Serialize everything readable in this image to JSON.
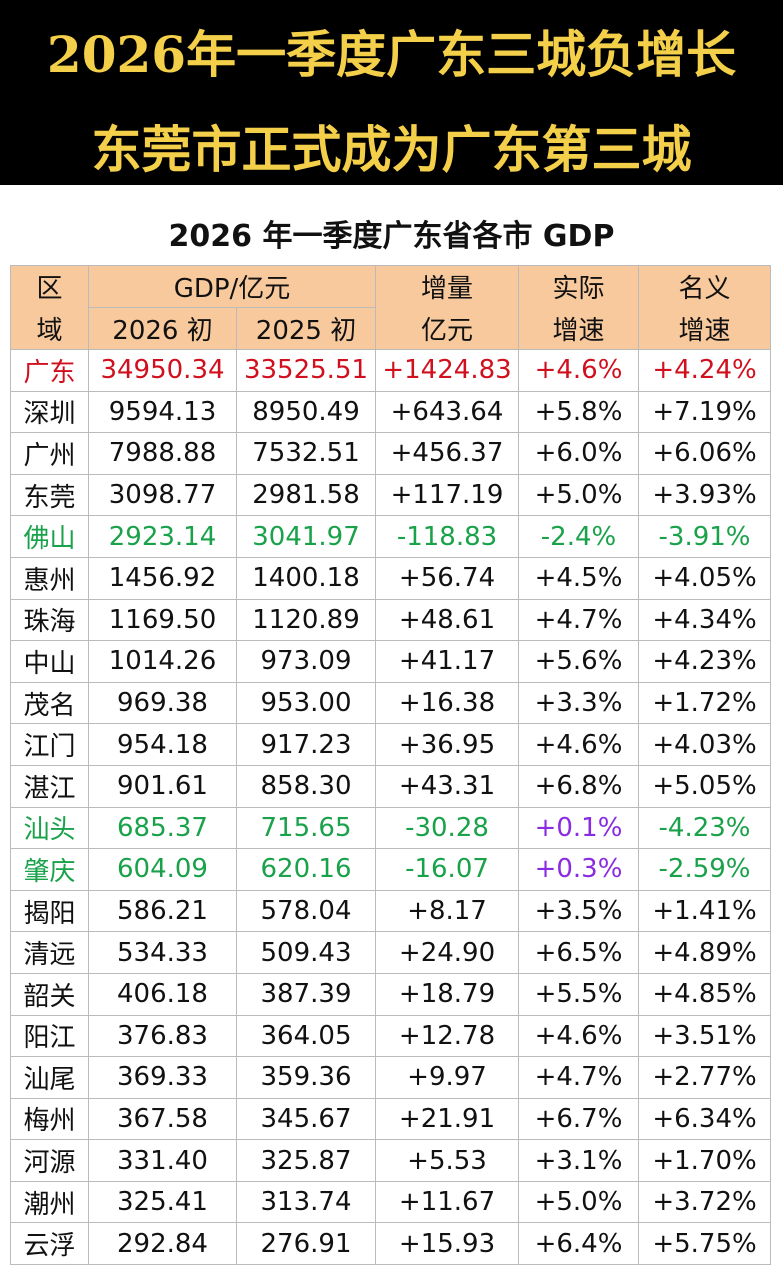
{
  "header": {
    "line1": "2026年一季度广东三城负增长",
    "line2": "东莞市正式成为广东第三城"
  },
  "table": {
    "title": "2026 年一季度广东省各市 GDP",
    "header_row1": [
      "区",
      "GDP/亿元",
      "增量",
      "实际",
      "名义"
    ],
    "header_row2": [
      "域",
      "2026 初",
      "2025 初",
      "亿元",
      "增速",
      "增速"
    ],
    "rows": [
      [
        "广东",
        "34950.34",
        "33525.51",
        "+1424.83",
        "+4.6%",
        "+4.24%"
      ],
      [
        "深圳",
        "9594.13",
        "8950.49",
        "+643.64",
        "+5.8%",
        "+7.19%"
      ],
      [
        "广州",
        "7988.88",
        "7532.51",
        "+456.37",
        "+6.0%",
        "+6.06%"
      ],
      [
        "东莞",
        "3098.77",
        "2981.58",
        "+117.19",
        "+5.0%",
        "+3.93%"
      ],
      [
        "佛山",
        "2923.14",
        "3041.97",
        "-118.83",
        "-2.4%",
        "-3.91%"
      ],
      [
        "惠州",
        "1456.92",
        "1400.18",
        "+56.74",
        "+4.5%",
        "+4.05%"
      ],
      [
        "珠海",
        "1169.50",
        "1120.89",
        "+48.61",
        "+4.7%",
        "+4.34%"
      ],
      [
        "中山",
        "1014.26",
        "973.09",
        "+41.17",
        "+5.6%",
        "+4.23%"
      ],
      [
        "茂名",
        "969.38",
        "953.00",
        "+16.38",
        "+3.3%",
        "+1.72%"
      ],
      [
        "江门",
        "954.18",
        "917.23",
        "+36.95",
        "+4.6%",
        "+4.03%"
      ],
      [
        "湛江",
        "901.61",
        "858.30",
        "+43.31",
        "+6.8%",
        "+5.05%"
      ],
      [
        "汕头",
        "685.37",
        "715.65",
        "-30.28",
        "+0.1%",
        "-4.23%"
      ],
      [
        "肇庆",
        "604.09",
        "620.16",
        "-16.07",
        "+0.3%",
        "-2.59%"
      ],
      [
        "揭阳",
        "586.21",
        "578.04",
        "+8.17",
        "+3.5%",
        "+1.41%"
      ],
      [
        "清远",
        "534.33",
        "509.43",
        "+24.90",
        "+6.5%",
        "+4.89%"
      ],
      [
        "韶关",
        "406.18",
        "387.39",
        "+18.79",
        "+5.5%",
        "+4.85%"
      ],
      [
        "阳江",
        "376.83",
        "364.05",
        "+12.78",
        "+4.6%",
        "+3.51%"
      ],
      [
        "汕尾",
        "369.33",
        "359.36",
        "+9.97",
        "+4.7%",
        "+2.77%"
      ],
      [
        "梅州",
        "367.58",
        "345.67",
        "+21.91",
        "+6.7%",
        "+6.34%"
      ],
      [
        "河源",
        "331.40",
        "325.87",
        "+5.53",
        "+3.1%",
        "+1.70%"
      ],
      [
        "潮州",
        "325.41",
        "313.74",
        "+11.67",
        "+5.0%",
        "+3.72%"
      ],
      [
        "云浮",
        "292.84",
        "276.91",
        "+15.93",
        "+6.4%",
        "+5.75%"
      ]
    ]
  }
}
